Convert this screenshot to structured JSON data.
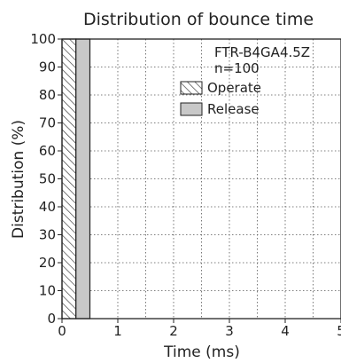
{
  "chart_data": {
    "type": "bar",
    "title": "Distribution of bounce time",
    "xlabel": "Time (ms)",
    "ylabel": "Distribution (%)",
    "xlim": [
      0,
      5
    ],
    "ylim": [
      0,
      100
    ],
    "xticks": [
      0,
      1,
      2,
      3,
      4,
      5
    ],
    "yticks": [
      0,
      10,
      20,
      30,
      40,
      50,
      60,
      70,
      80,
      90,
      100
    ],
    "grid": true,
    "annotations": [
      "FTR-B4GA4.5Z",
      "n=100"
    ],
    "legend_position": "upper right",
    "series": [
      {
        "name": "Operate",
        "pattern": "hatch",
        "color": "#ffffff",
        "bars": [
          {
            "x_start": 0,
            "x_end": 0.25,
            "value": 100
          }
        ]
      },
      {
        "name": "Release",
        "pattern": "solid",
        "color": "#c8c8c8",
        "bars": [
          {
            "x_start": 0.25,
            "x_end": 0.5,
            "value": 100
          }
        ]
      }
    ]
  }
}
